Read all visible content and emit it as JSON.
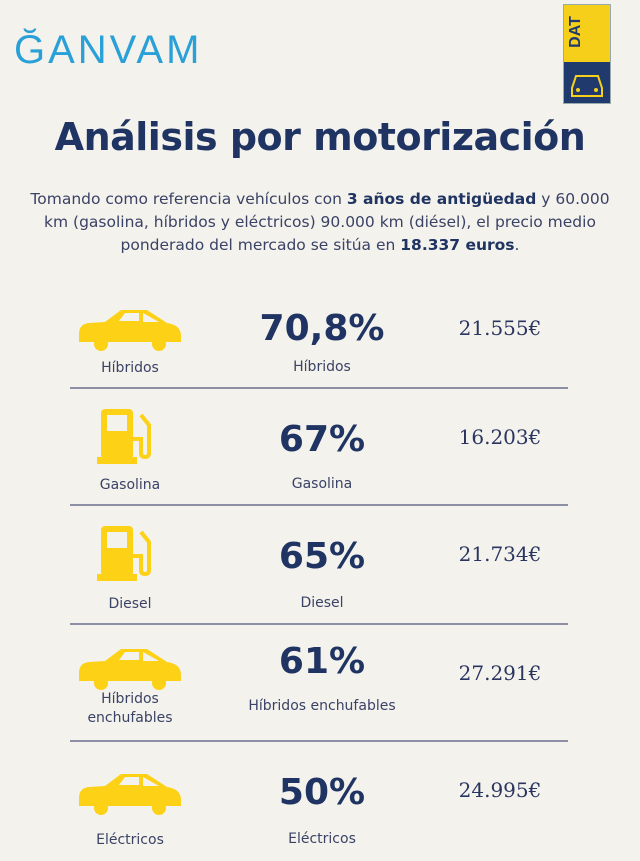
{
  "header": {
    "logo_left": "ĞANVAM",
    "logo_right": "DAT",
    "title": "Análisis por motorización"
  },
  "intro": {
    "p1": "Tomando como referencia vehículos con ",
    "b1": "3 años de antigüedad",
    "p2": " y 60.000 km (gasolina, híbridos y eléctricos) 90.000 km (diésel), el precio medio ponderado del mercado se sitúa en ",
    "b2": "18.337 euros",
    "p3": "."
  },
  "rows": [
    {
      "icon": "hybrid-car-leaf-icon",
      "label": "Híbridos",
      "percent": "70,8%",
      "percent_label": "Híbridos",
      "price": "21.555€"
    },
    {
      "icon": "fuel-pump-icon",
      "label": "Gasolina",
      "percent": "67%",
      "percent_label": "Gasolina",
      "price": "16.203€"
    },
    {
      "icon": "fuel-pump-icon",
      "label": "Diesel",
      "percent": "65%",
      "percent_label": "Diesel",
      "price": "21.734€"
    },
    {
      "icon": "plug-in-car-icon",
      "label": "Híbridos enchufables",
      "percent": "61%",
      "percent_label": "Híbridos enchufables",
      "price": "27.291€"
    },
    {
      "icon": "electric-car-icon",
      "label": "Eléctricos",
      "percent": "50%",
      "percent_label": "Eléctricos",
      "price": "24.995€"
    }
  ],
  "colors": {
    "navy": "#1f3462",
    "yellow": "#fcd116",
    "background": "#f4f2ec",
    "ganvam_blue": "#2aa0d8"
  }
}
